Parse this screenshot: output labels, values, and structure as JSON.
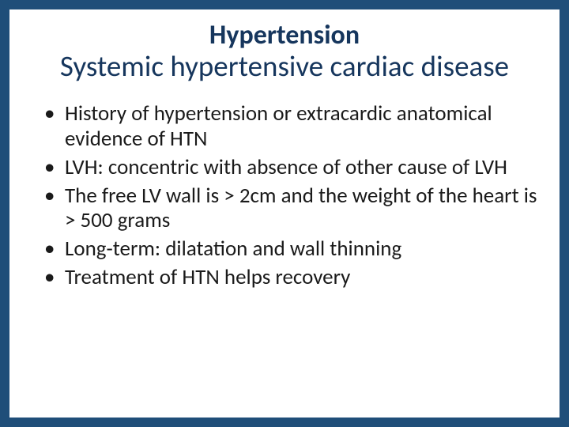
{
  "background_color": "#1f4e79",
  "slide_background": "#ffffff",
  "heading_color": "#16365d",
  "body_color": "#1a1a1a",
  "title": {
    "line1": "Hypertension",
    "line2": "Systemic hypertensive cardiac disease",
    "line1_fontsize": 34,
    "line1_fontweight": 700,
    "line2_fontsize": 37,
    "line2_fontweight": 400
  },
  "bullets": [
    "History of hypertension or extracardic anatomical evidence of HTN",
    "LVH: concentric with absence of other cause of LVH",
    "The free LV wall is > 2cm and the weight of the heart is > 500 grams",
    "Long-term: dilatation and wall thinning",
    "Treatment of HTN helps recovery"
  ],
  "bullet_fontsize": 27
}
